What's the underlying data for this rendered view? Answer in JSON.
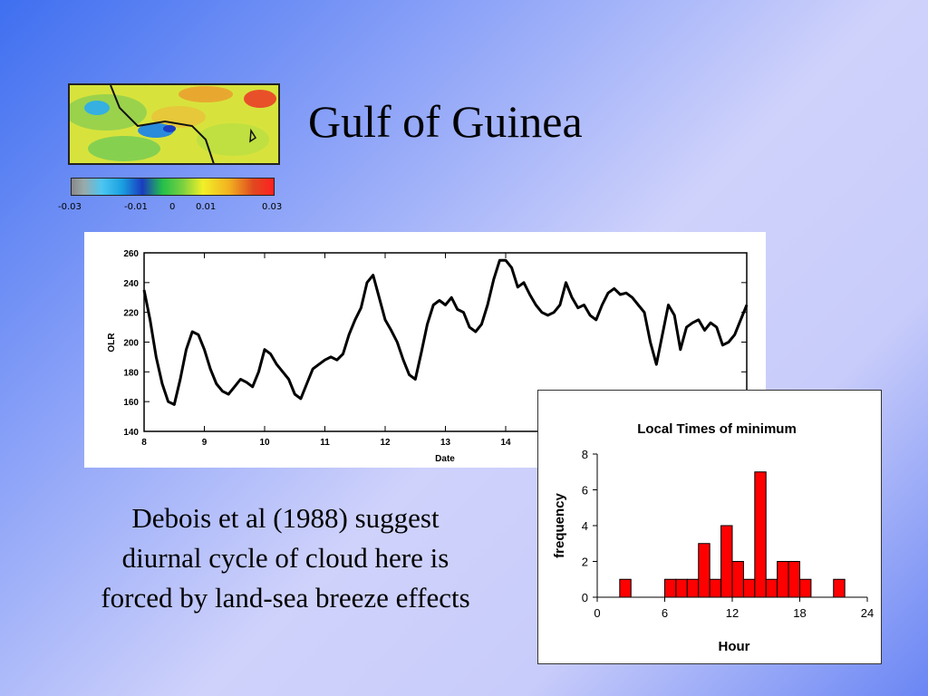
{
  "slide": {
    "title": "Gulf of Guinea",
    "body_lines": [
      "Debois et al (1988) suggest",
      "diurnal cycle of cloud here is",
      "forced by land-sea breeze effects"
    ]
  },
  "colorbar": {
    "tick_labels": [
      "-0.03",
      "-0.01",
      "0",
      "0.01",
      "0.03"
    ],
    "colors": [
      "#888888",
      "#4cc6f2",
      "#1a3cc0",
      "#23c04a",
      "#f2f028",
      "#f2b020",
      "#ff2020"
    ]
  },
  "chart_data": [
    {
      "type": "line",
      "xlabel": "Date",
      "ylabel": "OLR",
      "xlim": [
        8,
        18
      ],
      "ylim": [
        140,
        260
      ],
      "x_ticks": [
        8,
        9,
        10,
        11,
        12,
        13,
        14
      ],
      "y_ticks": [
        140,
        160,
        180,
        200,
        220,
        240,
        260
      ],
      "grid": false,
      "series": [
        {
          "x": [
            8.0,
            8.1,
            8.2,
            8.3,
            8.4,
            8.5,
            8.6,
            8.7,
            8.8,
            8.9,
            9.0,
            9.1,
            9.2,
            9.3,
            9.4,
            9.5,
            9.6,
            9.7,
            9.8,
            9.9,
            10.0,
            10.1,
            10.2,
            10.3,
            10.4,
            10.5,
            10.6,
            10.7,
            10.8,
            10.9,
            11.0,
            11.1,
            11.2,
            11.3,
            11.4,
            11.5,
            11.6,
            11.7,
            11.8,
            11.9,
            12.0,
            12.1,
            12.2,
            12.3,
            12.4,
            12.5,
            12.6,
            12.7,
            12.8,
            12.9,
            13.0,
            13.1,
            13.2,
            13.3,
            13.4,
            13.5,
            13.6,
            13.7,
            13.8,
            13.9,
            14.0,
            14.1,
            14.2,
            14.3,
            14.4,
            14.5,
            14.6,
            14.7,
            14.8,
            14.9,
            15.0,
            15.1,
            15.2,
            15.3,
            15.4,
            15.5,
            15.6,
            15.7,
            15.8,
            15.9,
            16.0,
            16.1,
            16.2,
            16.3,
            16.4,
            16.5,
            16.6,
            16.7,
            16.8,
            16.9,
            17.0,
            17.1,
            17.2,
            17.3,
            17.4,
            17.5,
            17.6,
            17.7,
            17.8,
            17.9,
            18.0
          ],
          "y": [
            235,
            215,
            190,
            172,
            160,
            158,
            175,
            195,
            207,
            205,
            195,
            182,
            172,
            167,
            165,
            170,
            175,
            173,
            170,
            180,
            195,
            192,
            185,
            180,
            175,
            165,
            162,
            172,
            182,
            185,
            188,
            190,
            188,
            192,
            205,
            215,
            223,
            240,
            245,
            230,
            215,
            208,
            200,
            188,
            178,
            175,
            193,
            212,
            225,
            228,
            225,
            230,
            222,
            220,
            210,
            207,
            212,
            225,
            242,
            255,
            255,
            250,
            237,
            240,
            232,
            225,
            220,
            218,
            220,
            225,
            240,
            230,
            223,
            225,
            218,
            215,
            225,
            233,
            236,
            232,
            233,
            230,
            225,
            220,
            200,
            185,
            205,
            225,
            218,
            195,
            210,
            213,
            215,
            208,
            213,
            210,
            198,
            200,
            205,
            215,
            225
          ]
        }
      ]
    },
    {
      "type": "bar",
      "title": "Local Times of minimum",
      "xlabel": "Hour",
      "ylabel": "frequency",
      "xlim": [
        0,
        24
      ],
      "ylim": [
        0,
        8
      ],
      "x_ticks": [
        0,
        6,
        12,
        18,
        24
      ],
      "y_ticks": [
        0,
        2,
        4,
        6,
        8
      ],
      "x_ticks_text": [
        "0",
        "6",
        "12",
        "18",
        "24"
      ],
      "y_ticks_text": [
        "0",
        "2",
        "4",
        "6",
        "8"
      ],
      "bar_color": "#ff0000",
      "categories": [
        2,
        6,
        7,
        8,
        9,
        10,
        11,
        12,
        13,
        14,
        15,
        16,
        17,
        18,
        21
      ],
      "values": [
        1,
        1,
        1,
        1,
        3,
        1,
        4,
        2,
        1,
        7,
        1,
        2,
        2,
        1,
        1
      ]
    }
  ]
}
